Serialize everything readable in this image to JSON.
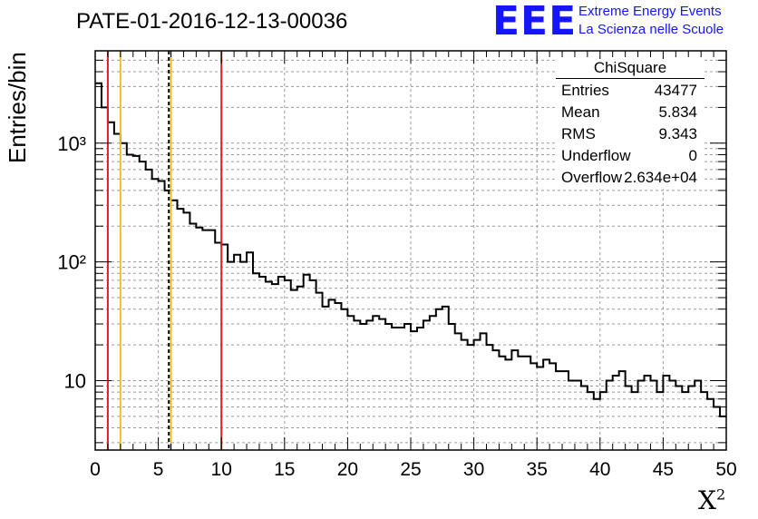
{
  "title": "PATE-01-2016-12-13-00036",
  "logo": {
    "mark": "EEE",
    "line1": "Extreme Energy Events",
    "line2": "La Scienza nelle Scuole",
    "color": "#1515ff"
  },
  "stats_box": {
    "name": "ChiSquare",
    "rows": [
      {
        "key": "Entries",
        "value": "43477"
      },
      {
        "key": "Mean",
        "value": "5.834"
      },
      {
        "key": "RMS",
        "value": "9.343"
      },
      {
        "key": "Underflow",
        "value": "0"
      },
      {
        "key": "Overflow",
        "value": "2.634e+04"
      }
    ]
  },
  "chart_data": {
    "type": "histogram",
    "title": "PATE-01-2016-12-13-00036",
    "xlabel": "X²",
    "ylabel": "Entries/bin",
    "xlim": [
      0,
      50
    ],
    "ylim": [
      2.6,
      6000
    ],
    "yscale": "log",
    "bin_width": 0.5,
    "x_ticks": [
      "0",
      "5",
      "10",
      "15",
      "20",
      "25",
      "30",
      "35",
      "40",
      "45",
      "50"
    ],
    "y_ticks": [
      {
        "value": 10,
        "label": "10"
      },
      {
        "value": 100,
        "label": "10²"
      },
      {
        "value": 1000,
        "label": "10³"
      }
    ],
    "grid": true,
    "bin_values": [
      3200,
      2000,
      1500,
      1200,
      1000,
      800,
      780,
      700,
      600,
      500,
      480,
      400,
      330,
      280,
      260,
      210,
      195,
      185,
      185,
      145,
      140,
      100,
      115,
      100,
      120,
      80,
      75,
      68,
      65,
      75,
      70,
      58,
      62,
      78,
      70,
      55,
      42,
      48,
      45,
      40,
      35,
      32,
      30,
      32,
      35,
      33,
      30,
      28,
      28,
      30,
      26,
      28,
      32,
      35,
      40,
      42,
      30,
      25,
      22,
      20,
      22,
      25,
      20,
      18,
      16,
      15,
      18,
      16,
      16,
      14,
      13,
      15,
      14,
      12,
      12,
      10,
      10,
      9,
      8,
      7,
      8,
      10,
      11,
      12,
      9,
      8,
      10,
      11,
      10,
      8,
      11,
      10,
      9,
      8,
      9,
      10,
      8,
      7,
      6,
      5
    ],
    "vertical_lines": [
      {
        "x": 1,
        "color": "#e02020",
        "style": "solid"
      },
      {
        "x": 2,
        "color": "#f0c020",
        "style": "solid"
      },
      {
        "x": 5.834,
        "color": "#000000",
        "style": "dashed"
      },
      {
        "x": 6,
        "color": "#f0c020",
        "style": "solid"
      },
      {
        "x": 10,
        "color": "#e02020",
        "style": "solid"
      }
    ]
  }
}
